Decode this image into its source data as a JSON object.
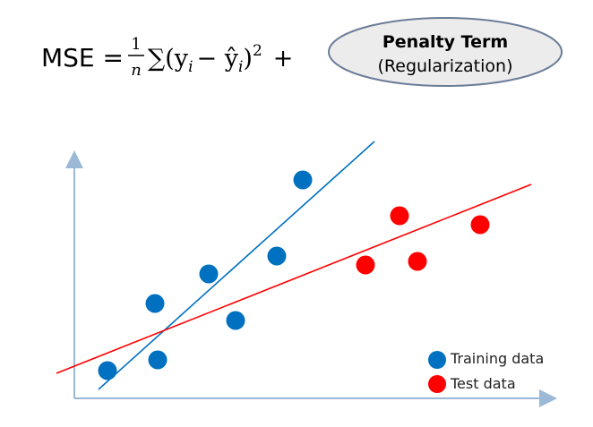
{
  "formula": {
    "lhs": "MSE =",
    "numerator": "1",
    "denominator": "n",
    "sum": "∑(y",
    "sub1": "i",
    "minus": "− ŷ",
    "sub2": "i",
    "close": ")",
    "power": "2",
    "plus": "+"
  },
  "penalty": {
    "title": "Penalty Term",
    "subtitle": "(Regularization)"
  },
  "legend": {
    "training": "Training data",
    "test": "Test data"
  }
}
